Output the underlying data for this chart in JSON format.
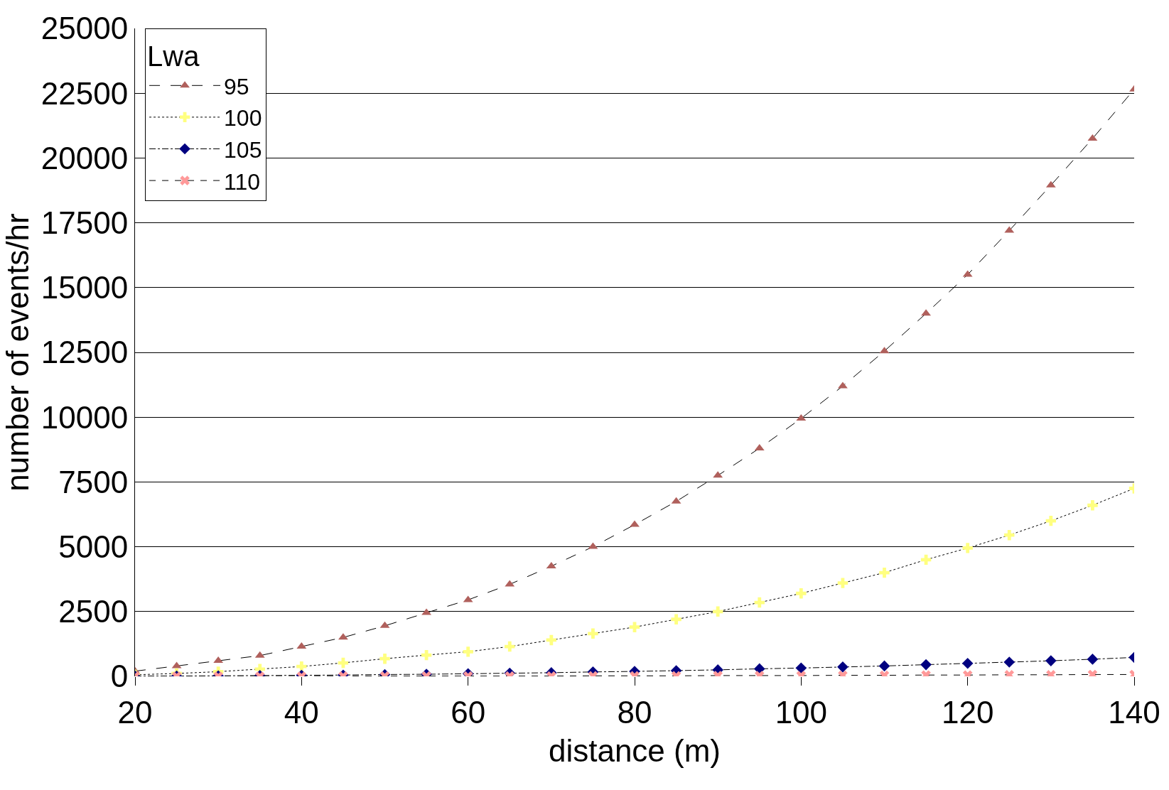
{
  "chart_data": {
    "type": "line",
    "xlabel": "distance (m)",
    "ylabel": "number of events/hr",
    "legend_title": "Lwa",
    "x": [
      20,
      25,
      30,
      35,
      40,
      45,
      50,
      55,
      60,
      65,
      70,
      75,
      80,
      85,
      90,
      95,
      100,
      105,
      110,
      115,
      120,
      125,
      130,
      135,
      140
    ],
    "xlim": [
      20,
      140
    ],
    "xticks": [
      20,
      40,
      60,
      80,
      100,
      120,
      140
    ],
    "ylim": [
      0,
      25000
    ],
    "yticks": [
      0,
      2500,
      5000,
      7500,
      10000,
      12500,
      15000,
      17500,
      20000,
      22500,
      25000
    ],
    "grid": "y",
    "legend": "top left",
    "series": [
      {
        "name": "95",
        "color": "#b0605c",
        "marker": "triangle",
        "line_style": "longdash",
        "values": [
          200,
          400,
          600,
          800,
          1150,
          1500,
          1950,
          2450,
          2950,
          3550,
          4250,
          5000,
          5850,
          6750,
          7750,
          8800,
          9950,
          11200,
          12550,
          14000,
          15500,
          17200,
          18950,
          20750,
          22650
        ]
      },
      {
        "name": "100",
        "color": "#ffff80",
        "marker": "cross",
        "line_style": "dotted",
        "values": [
          60,
          110,
          180,
          280,
          380,
          520,
          680,
          820,
          950,
          1150,
          1400,
          1650,
          1900,
          2200,
          2500,
          2850,
          3200,
          3600,
          4000,
          4500,
          4950,
          5450,
          6000,
          6600,
          7250
        ]
      },
      {
        "name": "105",
        "color": "#000080",
        "marker": "diamond",
        "line_style": "dashdot",
        "values": [
          10,
          10,
          20,
          30,
          40,
          50,
          70,
          80,
          100,
          120,
          140,
          170,
          190,
          220,
          250,
          290,
          320,
          360,
          400,
          450,
          500,
          550,
          600,
          660,
          730
        ]
      },
      {
        "name": "110",
        "color": "#ff9999",
        "marker": "x",
        "line_style": "dashed",
        "values": [
          0,
          0,
          0,
          0,
          0,
          10,
          10,
          10,
          10,
          10,
          10,
          20,
          20,
          20,
          30,
          30,
          30,
          40,
          40,
          50,
          50,
          60,
          60,
          70,
          70
        ]
      }
    ]
  }
}
